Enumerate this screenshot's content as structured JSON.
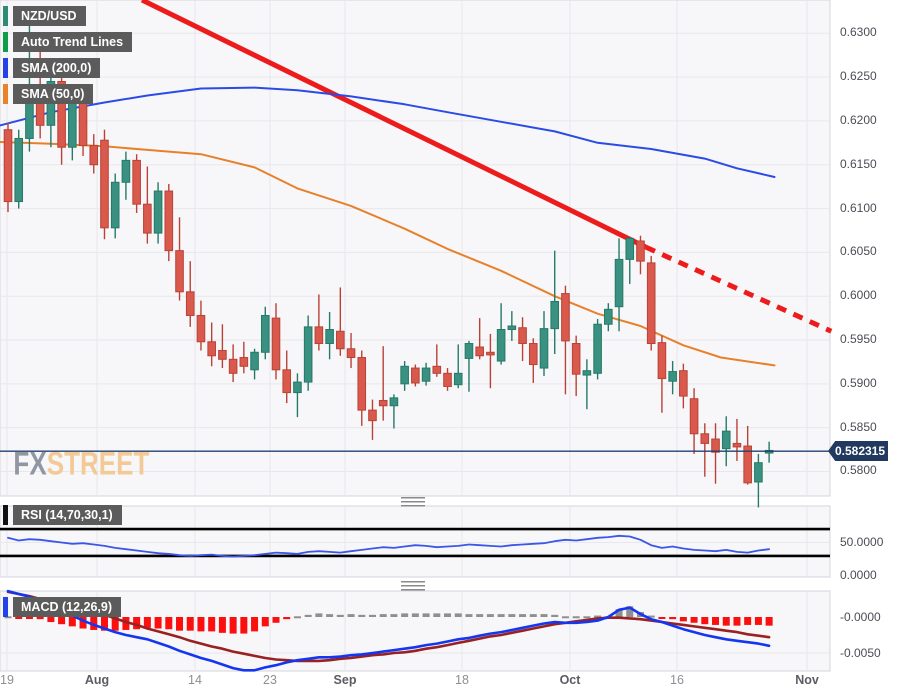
{
  "symbol": "NZD/USD",
  "legend": {
    "main": [
      {
        "label": "NZD/USD",
        "color": "#2f8a76"
      },
      {
        "label": "Auto Trend Lines",
        "color": "#0f9d49"
      },
      {
        "label": "SMA (200,0)",
        "color": "#2442e8"
      },
      {
        "label": "SMA (50,0)",
        "color": "#e8832a"
      }
    ],
    "rsi": {
      "label": "RSI (14,70,30,1)",
      "color": "#111111"
    },
    "macd": {
      "label": "MACD (12,26,9)",
      "color": "#2442e8"
    }
  },
  "watermark": {
    "fx": "FX",
    "street": "STREET",
    "fx_color": "#9096a2",
    "street_color": "#f3ca96"
  },
  "price_axis": {
    "labels": [
      "0.6300",
      "0.6250",
      "0.6200",
      "0.6150",
      "0.6100",
      "0.6050",
      "0.6000",
      "0.5950",
      "0.5900",
      "0.5850",
      "0.5800"
    ],
    "values": [
      0.63,
      0.625,
      0.62,
      0.615,
      0.61,
      0.605,
      0.6,
      0.595,
      0.59,
      0.585,
      0.58
    ],
    "current_label": "0.582315",
    "current_value": 0.582315
  },
  "rsi_axis": {
    "labels": [
      "50.0000",
      "0.0000"
    ],
    "values": [
      50,
      0
    ]
  },
  "macd_axis": {
    "labels": [
      "-0.0000",
      "-0.0050"
    ],
    "values": [
      0,
      -0.005
    ]
  },
  "x_axis": {
    "ticks": [
      {
        "pos": 0.0084,
        "label": "19",
        "bold": false
      },
      {
        "pos": 0.1169,
        "label": "Aug",
        "bold": true
      },
      {
        "pos": 0.2349,
        "label": "14",
        "bold": false
      },
      {
        "pos": 0.3253,
        "label": "23",
        "bold": false
      },
      {
        "pos": 0.4157,
        "label": "Sep",
        "bold": true
      },
      {
        "pos": 0.5566,
        "label": "18",
        "bold": false
      },
      {
        "pos": 0.6867,
        "label": "Oct",
        "bold": true
      },
      {
        "pos": 0.8157,
        "label": "16",
        "bold": false
      },
      {
        "pos": 0.9723,
        "label": "Nov",
        "bold": true
      }
    ]
  },
  "colors": {
    "candle_up": "#3a9181",
    "candle_up_stroke": "#257a67",
    "candle_down": "#d9594c",
    "candle_down_stroke": "#b94237",
    "sma200": "#2b4be6",
    "sma50": "#e8802a",
    "trend": "#ed1c1c",
    "price_line": "#21406e",
    "rsi_line": "#3c56e8",
    "rsi_level": "#000000",
    "macd_line": "#1536f0",
    "signal_line": "#992121",
    "hist_neg": "#fb0f0f",
    "hist_pos": "#8f8f8f",
    "panel_bg": "#f7f7f9",
    "panel_border": "#d5d5dc",
    "grid": "#e7e7ed"
  },
  "chart_data": [
    {
      "type": "candlestick",
      "title": "NZD/USD daily candles with SMA(200), SMA(50) and auto trend lines",
      "ylim": [
        0.5772,
        0.6338
      ],
      "candles": [
        [
          0.619,
          0.6198,
          0.6096,
          0.6108
        ],
        [
          0.6108,
          0.619,
          0.61,
          0.618
        ],
        [
          0.618,
          0.631,
          0.6165,
          0.623
        ],
        [
          0.623,
          0.63,
          0.618,
          0.6195
        ],
        [
          0.6195,
          0.626,
          0.617,
          0.6245
        ],
        [
          0.6245,
          0.625,
          0.615,
          0.617
        ],
        [
          0.617,
          0.6235,
          0.6155,
          0.6225
        ],
        [
          0.6225,
          0.624,
          0.616,
          0.6172
        ],
        [
          0.6172,
          0.6185,
          0.614,
          0.615
        ],
        [
          0.6178,
          0.619,
          0.6065,
          0.6078
        ],
        [
          0.6078,
          0.614,
          0.6066,
          0.613
        ],
        [
          0.613,
          0.6165,
          0.611,
          0.6155
        ],
        [
          0.6155,
          0.6162,
          0.6095,
          0.6105
        ],
        [
          0.6105,
          0.6148,
          0.606,
          0.6072
        ],
        [
          0.6072,
          0.613,
          0.606,
          0.612
        ],
        [
          0.612,
          0.6128,
          0.604,
          0.6052
        ],
        [
          0.6052,
          0.609,
          0.5995,
          0.6005
        ],
        [
          0.6005,
          0.604,
          0.5965,
          0.5978
        ],
        [
          0.5978,
          0.5995,
          0.5938,
          0.5948
        ],
        [
          0.5948,
          0.597,
          0.592,
          0.5932
        ],
        [
          0.5938,
          0.5968,
          0.5918,
          0.5928
        ],
        [
          0.5928,
          0.5945,
          0.5902,
          0.5912
        ],
        [
          0.593,
          0.5948,
          0.5912,
          0.592
        ],
        [
          0.5916,
          0.594,
          0.5905,
          0.5936
        ],
        [
          0.5936,
          0.5988,
          0.5928,
          0.5978
        ],
        [
          0.5975,
          0.5992,
          0.5905,
          0.5916
        ],
        [
          0.5916,
          0.5938,
          0.5878,
          0.589
        ],
        [
          0.589,
          0.5912,
          0.5862,
          0.5902
        ],
        [
          0.5902,
          0.5978,
          0.5892,
          0.5965
        ],
        [
          0.5965,
          0.6002,
          0.5938,
          0.5946
        ],
        [
          0.5946,
          0.5982,
          0.5928,
          0.5962
        ],
        [
          0.596,
          0.601,
          0.5932,
          0.594
        ],
        [
          0.594,
          0.5958,
          0.5918,
          0.593
        ],
        [
          0.593,
          0.5938,
          0.5852,
          0.587
        ],
        [
          0.587,
          0.5882,
          0.5836,
          0.5858
        ],
        [
          0.5881,
          0.5943,
          0.5858,
          0.5875
        ],
        [
          0.5875,
          0.5888,
          0.5849,
          0.5884
        ],
        [
          0.59,
          0.5926,
          0.5892,
          0.592
        ],
        [
          0.5918,
          0.5922,
          0.5897,
          0.5901
        ],
        [
          0.5903,
          0.5924,
          0.5898,
          0.5918
        ],
        [
          0.592,
          0.5945,
          0.5908,
          0.5912
        ],
        [
          0.5912,
          0.5918,
          0.5892,
          0.5897
        ],
        [
          0.5899,
          0.5945,
          0.5895,
          0.5912
        ],
        [
          0.5929,
          0.5949,
          0.5891,
          0.5946
        ],
        [
          0.5942,
          0.5975,
          0.5928,
          0.5932
        ],
        [
          0.5936,
          0.5957,
          0.5895,
          0.5933
        ],
        [
          0.5926,
          0.5992,
          0.5922,
          0.5962
        ],
        [
          0.5962,
          0.5983,
          0.5949,
          0.5966
        ],
        [
          0.5964,
          0.5976,
          0.5926,
          0.5946
        ],
        [
          0.5946,
          0.5952,
          0.5901,
          0.5922
        ],
        [
          0.5918,
          0.5983,
          0.5909,
          0.5963
        ],
        [
          0.5963,
          0.6052,
          0.5934,
          0.5994
        ],
        [
          0.6003,
          0.6012,
          0.5888,
          0.5949
        ],
        [
          0.5946,
          0.5955,
          0.5886,
          0.5911
        ],
        [
          0.591,
          0.5928,
          0.5871,
          0.5915
        ],
        [
          0.5912,
          0.5974,
          0.5905,
          0.5968
        ],
        [
          0.5968,
          0.5992,
          0.596,
          0.5985
        ],
        [
          0.5988,
          0.6066,
          0.596,
          0.6042
        ],
        [
          0.6042,
          0.6068,
          0.6014,
          0.6066
        ],
        [
          0.6063,
          0.6069,
          0.6025,
          0.604
        ],
        [
          0.6038,
          0.6046,
          0.5938,
          0.5946
        ],
        [
          0.5947,
          0.5955,
          0.5867,
          0.5906
        ],
        [
          0.5903,
          0.5926,
          0.5888,
          0.5914
        ],
        [
          0.5915,
          0.5923,
          0.5872,
          0.5886
        ],
        [
          0.5883,
          0.5895,
          0.582,
          0.5843
        ],
        [
          0.5843,
          0.5855,
          0.5794,
          0.5832
        ],
        [
          0.5837,
          0.5855,
          0.5786,
          0.5822
        ],
        [
          0.5826,
          0.5863,
          0.5806,
          0.5846
        ],
        [
          0.5832,
          0.586,
          0.5812,
          0.5828
        ],
        [
          0.5829,
          0.5852,
          0.5785,
          0.5787
        ],
        [
          0.5788,
          0.582,
          0.5759,
          0.581
        ],
        [
          0.5821,
          0.5834,
          0.581,
          0.5824
        ]
      ],
      "overlays": {
        "sma200": [
          [
            -0.7,
            0.6195
          ],
          [
            4,
            0.621
          ],
          [
            9,
            0.6221
          ],
          [
            13,
            0.6229
          ],
          [
            18,
            0.6237
          ],
          [
            23,
            0.6238
          ],
          [
            27,
            0.6235
          ],
          [
            32,
            0.6228
          ],
          [
            37,
            0.6219
          ],
          [
            41,
            0.621
          ],
          [
            46,
            0.6199
          ],
          [
            51,
            0.6188
          ],
          [
            55,
            0.6175
          ],
          [
            60,
            0.6168
          ],
          [
            65,
            0.6157
          ],
          [
            68,
            0.6146
          ],
          [
            71.5,
            0.6136
          ]
        ],
        "sma50": [
          [
            -0.7,
            0.6176
          ],
          [
            4,
            0.6174
          ],
          [
            9,
            0.6171
          ],
          [
            13,
            0.6167
          ],
          [
            18,
            0.6162
          ],
          [
            23,
            0.6147
          ],
          [
            27,
            0.6123
          ],
          [
            32,
            0.6103
          ],
          [
            37,
            0.6077
          ],
          [
            41,
            0.6054
          ],
          [
            46,
            0.6029
          ],
          [
            51,
            0.6
          ],
          [
            55,
            0.598
          ],
          [
            59,
            0.5966
          ],
          [
            63,
            0.5944
          ],
          [
            66.5,
            0.593
          ],
          [
            71.5,
            0.5921
          ]
        ],
        "trendline_solid": [
          [
            12.5,
            0.6338
          ],
          [
            59.5,
            0.6056
          ]
        ],
        "trendline_dashed": [
          [
            59.5,
            0.6056
          ],
          [
            76.8,
            0.596
          ]
        ],
        "current_price": 0.582315
      }
    },
    {
      "type": "line",
      "name": "RSI (14,70,30,1)",
      "ylim": [
        -1.5,
        104.5
      ],
      "levels": [
        70,
        30
      ],
      "values": [
        57,
        53,
        55,
        54,
        52,
        50,
        48,
        49,
        47,
        45,
        42,
        40,
        38,
        36,
        34,
        33,
        31,
        30,
        31,
        32,
        30,
        29,
        30,
        31,
        33,
        35,
        34,
        33,
        36,
        37,
        36,
        35,
        37,
        39,
        41,
        43,
        42,
        44,
        46,
        45,
        43,
        44,
        45,
        47,
        46,
        45,
        44,
        46,
        47,
        48,
        49,
        52,
        54,
        53,
        55,
        57,
        58,
        60,
        59,
        54,
        46,
        42,
        44,
        41,
        39,
        38,
        37,
        39,
        36,
        35,
        38,
        40
      ]
    },
    {
      "type": "macd",
      "name": "MACD (12,26,9)",
      "ylim": [
        -0.0075,
        0.0036
      ],
      "macd": [
        0.0036,
        0.0032,
        0.0028,
        0.0022,
        0.0015,
        0.0008,
        0.0002,
        -0.0005,
        -0.0011,
        -0.0016,
        -0.0021,
        -0.0025,
        -0.0028,
        -0.0031,
        -0.0036,
        -0.0041,
        -0.0047,
        -0.0052,
        -0.0057,
        -0.0061,
        -0.0066,
        -0.0071,
        -0.0074,
        -0.0074,
        -0.007,
        -0.0067,
        -0.0063,
        -0.006,
        -0.0058,
        -0.0056,
        -0.0056,
        -0.0055,
        -0.0053,
        -0.0052,
        -0.005,
        -0.0048,
        -0.0046,
        -0.0044,
        -0.0042,
        -0.0039,
        -0.0037,
        -0.0034,
        -0.0031,
        -0.0029,
        -0.0026,
        -0.0023,
        -0.0021,
        -0.0018,
        -0.0015,
        -0.0012,
        -0.0009,
        -0.0007,
        -0.0008,
        -0.0008,
        -0.0007,
        -0.0005,
        0.0,
        0.001,
        0.0013,
        0.0004,
        -0.0003,
        -0.0007,
        -0.0012,
        -0.0017,
        -0.0021,
        -0.0025,
        -0.0028,
        -0.0031,
        -0.0033,
        -0.0035,
        -0.0037,
        -0.004
      ],
      "signal": [
        0.0035,
        0.0032,
        0.0029,
        0.0025,
        0.0022,
        0.0018,
        0.0015,
        0.0011,
        0.0007,
        0.0003,
        -0.0002,
        -0.0007,
        -0.0011,
        -0.0016,
        -0.002,
        -0.0024,
        -0.0028,
        -0.0033,
        -0.0037,
        -0.0041,
        -0.0044,
        -0.0048,
        -0.0051,
        -0.0054,
        -0.0057,
        -0.0059,
        -0.006,
        -0.0061,
        -0.0061,
        -0.0061,
        -0.006,
        -0.0058,
        -0.0057,
        -0.0055,
        -0.0053,
        -0.0052,
        -0.005,
        -0.0049,
        -0.0047,
        -0.0044,
        -0.0042,
        -0.0039,
        -0.0036,
        -0.0033,
        -0.003,
        -0.0027,
        -0.0025,
        -0.0022,
        -0.0019,
        -0.0016,
        -0.0013,
        -0.001,
        -0.0008,
        -0.0006,
        -0.0004,
        -0.0002,
        -0.0001,
        -0.0001,
        -0.0002,
        -0.0003,
        -0.0005,
        -0.0007,
        -0.0009,
        -0.0011,
        -0.0013,
        -0.0015,
        -0.0017,
        -0.0019,
        -0.0021,
        -0.0024,
        -0.0026,
        -0.0028
      ],
      "histogram": [
        0.0001,
        -0.0002,
        -0.0001,
        -0.0003,
        -0.0007,
        -0.001,
        -0.0013,
        -0.0016,
        -0.0018,
        -0.0019,
        -0.0019,
        -0.0018,
        -0.0017,
        -0.0015,
        -0.0016,
        -0.0017,
        -0.0019,
        -0.0019,
        -0.002,
        -0.002,
        -0.0022,
        -0.0023,
        -0.0023,
        -0.002,
        -0.0013,
        -0.0008,
        -0.0003,
        0.0001,
        0.0003,
        0.0005,
        0.0004,
        0.0003,
        0.0004,
        0.0003,
        0.0003,
        0.0004,
        0.0004,
        0.0005,
        0.0005,
        0.0005,
        0.0005,
        0.0005,
        0.0005,
        0.0004,
        0.0004,
        0.0004,
        0.0004,
        0.0004,
        0.0004,
        0.0004,
        0.0004,
        0.0003,
        0.0001,
        0.0001,
        0.0001,
        0.0002,
        0.0001,
        0.0011,
        0.0015,
        0.0007,
        0.0002,
        -0.0002,
        -0.0003,
        -0.0006,
        -0.0008,
        -0.001,
        -0.0011,
        -0.0012,
        -0.0012,
        -0.0011,
        -0.0011,
        -0.0012
      ]
    }
  ]
}
